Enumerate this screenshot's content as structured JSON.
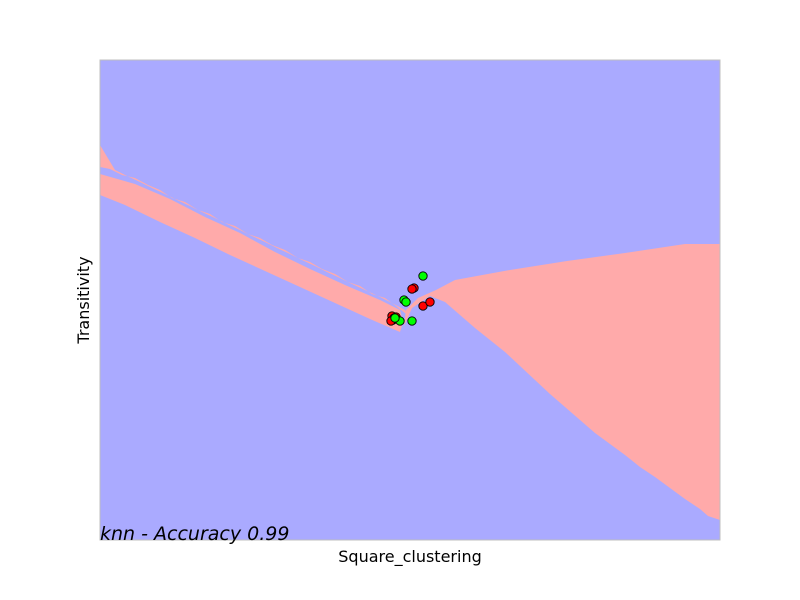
{
  "chart_data": {
    "type": "scatter",
    "title": "",
    "xlabel": "Square_clustering",
    "ylabel": "Transitivity",
    "annotation": "knn - Accuracy 0.99",
    "xticks": "none",
    "yticks": "none",
    "grid": false,
    "xlim": [
      0,
      620
    ],
    "ylim": [
      0,
      480
    ],
    "colors": {
      "region_a": "#aaaaff",
      "region_b": "#ffaaaa",
      "point_red": "#ff0000",
      "point_green": "#00ff00",
      "point_edge": "#000000",
      "frame": "#bfbfbf"
    },
    "decision_regions": {
      "description_free": true,
      "background_class": "region_a",
      "region_b_polygons": [
        [
          [
            0,
            410
          ],
          [
            0,
            366
          ],
          [
            35,
            356
          ],
          [
            70,
            341
          ],
          [
            105,
            323
          ],
          [
            140,
            307
          ],
          [
            175,
            288
          ],
          [
            210,
            271
          ],
          [
            245,
            255
          ],
          [
            280,
            240
          ],
          [
            300,
            230
          ],
          [
            303,
            218
          ],
          [
            300,
            208
          ],
          [
            270,
            221
          ],
          [
            235,
            237
          ],
          [
            200,
            253
          ],
          [
            165,
            269
          ],
          [
            130,
            285
          ],
          [
            95,
            302
          ],
          [
            60,
            318
          ],
          [
            25,
            335
          ],
          [
            0,
            345
          ]
        ],
        [
          [
            0,
            395
          ],
          [
            0,
            373
          ],
          [
            10,
            371
          ],
          [
            22,
            365
          ],
          [
            35,
            362
          ],
          [
            48,
            355
          ],
          [
            60,
            350
          ],
          [
            72,
            342
          ],
          [
            85,
            338
          ],
          [
            98,
            330
          ],
          [
            110,
            326
          ],
          [
            122,
            318
          ],
          [
            135,
            314
          ],
          [
            148,
            306
          ],
          [
            160,
            302
          ],
          [
            172,
            295
          ],
          [
            185,
            290
          ],
          [
            198,
            282
          ],
          [
            210,
            278
          ],
          [
            222,
            271
          ],
          [
            235,
            266
          ],
          [
            248,
            258
          ],
          [
            260,
            254
          ],
          [
            272,
            246
          ],
          [
            285,
            242
          ],
          [
            296,
            234
          ],
          [
            310,
            223
          ],
          [
            305,
            230
          ],
          [
            290,
            238
          ],
          [
            278,
            244
          ],
          [
            265,
            250
          ],
          [
            252,
            256
          ],
          [
            240,
            262
          ],
          [
            227,
            268
          ],
          [
            215,
            274
          ],
          [
            202,
            280
          ],
          [
            190,
            286
          ],
          [
            177,
            292
          ],
          [
            165,
            298
          ],
          [
            152,
            304
          ],
          [
            140,
            310
          ],
          [
            127,
            316
          ],
          [
            115,
            322
          ],
          [
            102,
            328
          ],
          [
            90,
            334
          ],
          [
            77,
            340
          ],
          [
            65,
            346
          ],
          [
            52,
            352
          ],
          [
            40,
            358
          ],
          [
            27,
            364
          ],
          [
            15,
            370
          ]
        ],
        [
          [
            304,
            0
          ],
          [
            304,
            214
          ],
          [
            312,
            232
          ],
          [
            330,
            244
          ],
          [
            345,
            238
          ],
          [
            360,
            225
          ],
          [
            375,
            212
          ],
          [
            390,
            200
          ],
          [
            405,
            188
          ],
          [
            420,
            174
          ],
          [
            435,
            160
          ],
          [
            450,
            146
          ],
          [
            465,
            133
          ],
          [
            480,
            120
          ],
          [
            495,
            107
          ],
          [
            510,
            96
          ],
          [
            525,
            85
          ],
          [
            540,
            73
          ],
          [
            555,
            63
          ],
          [
            570,
            52
          ],
          [
            585,
            41
          ],
          [
            600,
            31
          ],
          [
            608,
            24
          ],
          [
            620,
            20
          ],
          [
            620,
            296
          ],
          [
            585,
            296
          ],
          [
            525,
            287
          ],
          [
            467,
            279
          ],
          [
            410,
            270
          ],
          [
            355,
            260
          ],
          [
            336,
            250
          ],
          [
            318,
            242
          ],
          [
            306,
            230
          ],
          [
            304,
            214
          ]
        ]
      ]
    },
    "series": [
      {
        "name": "",
        "color": "point_red",
        "points": [
          [
            292,
            224
          ],
          [
            293,
            220
          ],
          [
            294,
            222
          ],
          [
            291,
            219
          ],
          [
            314,
            252
          ],
          [
            312,
            251
          ],
          [
            323,
            234
          ],
          [
            330,
            238
          ],
          [
            296,
            223
          ]
        ]
      },
      {
        "name": "",
        "color": "point_green",
        "points": [
          [
            323,
            264
          ],
          [
            304,
            240
          ],
          [
            306,
            238
          ],
          [
            300,
            219
          ],
          [
            312,
            219
          ],
          [
            295,
            222
          ]
        ]
      }
    ]
  }
}
